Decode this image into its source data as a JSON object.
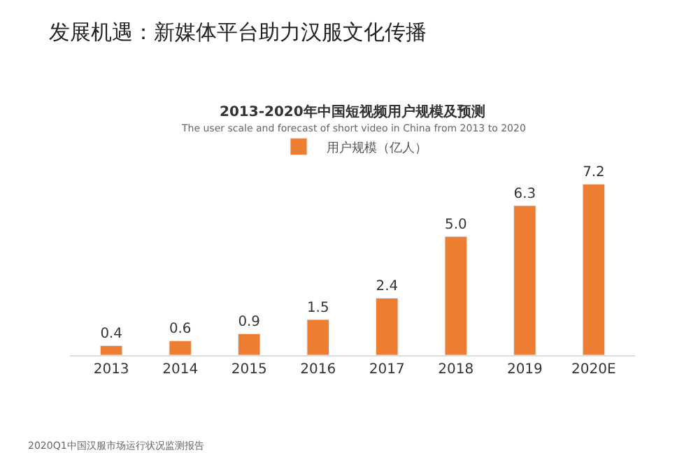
{
  "chart_data": {
    "type": "bar",
    "title": "发展机遇：新媒体平台助力汉服文化传播",
    "subtitle": "2013-2020年中国短视频用户规模及预测",
    "annotations": [
      "The user scale and forecast of short video in China from 2013 to 2020",
      "2020Q1中国汉服市场运行状况监测报告"
    ],
    "categories": [
      "2013",
      "2014",
      "2015",
      "2016",
      "2017",
      "2018",
      "2019",
      "2020E"
    ],
    "series": [
      {
        "name": "用户规模（亿人）",
        "color": "#ed7d31",
        "values": [
          0.4,
          0.6,
          0.9,
          1.5,
          2.4,
          5.0,
          6.3,
          7.2
        ],
        "value_labels": [
          "0.4",
          "0.6",
          "0.9",
          "1.5",
          "2.4",
          "5.0",
          "6.3",
          "7.2"
        ]
      }
    ],
    "legend": "top"
  }
}
